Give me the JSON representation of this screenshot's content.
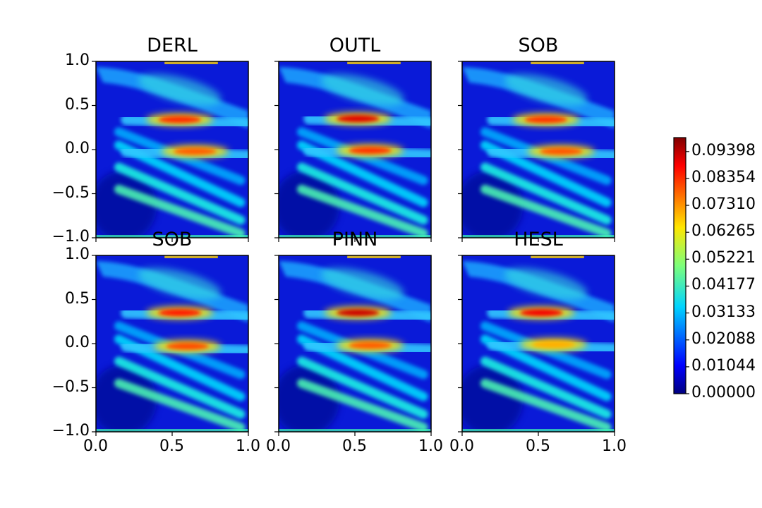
{
  "chart_data": {
    "type": "heatmap",
    "panels": [
      {
        "title": "DERL",
        "hot_spots": [
          {
            "x": 0.55,
            "y": 0.34,
            "value": 0.083
          },
          {
            "x": 0.65,
            "y": -0.02,
            "value": 0.078
          }
        ]
      },
      {
        "title": "OUTL",
        "hot_spots": [
          {
            "x": 0.52,
            "y": 0.35,
            "value": 0.09
          },
          {
            "x": 0.6,
            "y": -0.01,
            "value": 0.082
          }
        ]
      },
      {
        "title": "SOB",
        "hot_spots": [
          {
            "x": 0.55,
            "y": 0.34,
            "value": 0.082
          },
          {
            "x": 0.65,
            "y": -0.02,
            "value": 0.079
          }
        ]
      },
      {
        "title": "SOB",
        "hot_spots": [
          {
            "x": 0.55,
            "y": 0.35,
            "value": 0.085
          },
          {
            "x": 0.6,
            "y": -0.03,
            "value": 0.08
          }
        ]
      },
      {
        "title": "PINN",
        "hot_spots": [
          {
            "x": 0.52,
            "y": 0.35,
            "value": 0.092
          },
          {
            "x": 0.6,
            "y": -0.02,
            "value": 0.078
          }
        ]
      },
      {
        "title": "HESL",
        "hot_spots": [
          {
            "x": 0.52,
            "y": 0.35,
            "value": 0.088
          },
          {
            "x": 0.6,
            "y": -0.01,
            "value": 0.07
          }
        ]
      }
    ],
    "x_range": [
      0.0,
      1.0
    ],
    "y_range": [
      -1.0,
      1.0
    ],
    "x_ticks": [
      "0.0",
      "0.5",
      "1.0"
    ],
    "y_ticks": [
      "1.0",
      "0.5",
      "0.0",
      "−0.5",
      "−1.0"
    ],
    "colormap": "jet",
    "color_range": [
      0.0,
      0.0994
    ],
    "colorbar_ticks": [
      "0.09398",
      "0.08354",
      "0.07310",
      "0.06265",
      "0.05221",
      "0.04177",
      "0.03133",
      "0.02088",
      "0.01044",
      "0.00000"
    ],
    "grid": false,
    "legend": "colorbar-right"
  }
}
